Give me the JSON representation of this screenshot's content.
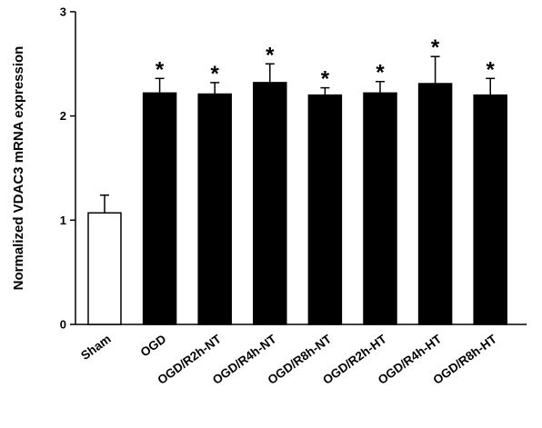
{
  "chart_data": {
    "type": "bar",
    "title": "",
    "xlabel": "",
    "ylabel": "Normalized VDAC3 mRNA expression",
    "ylim": [
      0,
      3
    ],
    "yticks": [
      "0",
      "1",
      "2",
      "3"
    ],
    "categories": [
      "Sham",
      "OGD",
      "OGD/R2h-NT",
      "OGD/R4h-NT",
      "OGD/R8h-NT",
      "OGD/R2h-HT",
      "OGD/R4h-HT",
      "OGD/R8h-HT"
    ],
    "values": [
      1.07,
      2.22,
      2.21,
      2.32,
      2.2,
      2.22,
      2.31,
      2.2
    ],
    "errors": [
      0.17,
      0.14,
      0.11,
      0.18,
      0.07,
      0.11,
      0.26,
      0.16
    ],
    "fill_colors": [
      "#ffffff",
      "#000000",
      "#000000",
      "#000000",
      "#000000",
      "#000000",
      "#000000",
      "#000000"
    ],
    "significance": [
      "",
      "*",
      "*",
      "*",
      "*",
      "*",
      "*",
      "*"
    ],
    "grid": false,
    "legend": "none"
  }
}
